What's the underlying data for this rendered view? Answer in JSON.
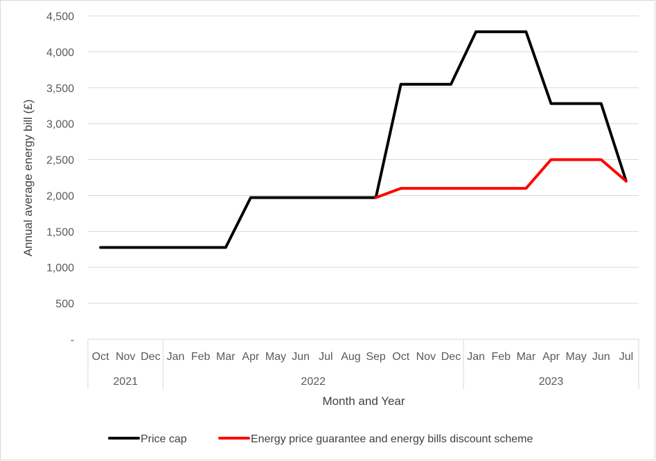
{
  "chart_data": {
    "type": "line",
    "title": "",
    "xlabel": "Month and Year",
    "ylabel": "Annual average energy bill (£)",
    "ylim": [
      0,
      4500
    ],
    "yticks": [
      0,
      500,
      1000,
      1500,
      2000,
      2500,
      3000,
      3500,
      4000,
      4500
    ],
    "ytick_labels": [
      "-",
      "500",
      "1,000",
      "1,500",
      "2,000",
      "2,500",
      "3,000",
      "3,500",
      "4,000",
      "4,500"
    ],
    "categories": [
      "Oct",
      "Nov",
      "Dec",
      "Jan",
      "Feb",
      "Mar",
      "Apr",
      "May",
      "Jun",
      "Jul",
      "Aug",
      "Sep",
      "Oct",
      "Nov",
      "Dec",
      "Jan",
      "Feb",
      "Mar",
      "Apr",
      "May",
      "Jun",
      "Jul"
    ],
    "year_groups": [
      {
        "label": "2021",
        "start": 0,
        "end": 2
      },
      {
        "label": "2022",
        "start": 3,
        "end": 14
      },
      {
        "label": "2023",
        "start": 15,
        "end": 21
      }
    ],
    "grid": true,
    "legend_position": "bottom",
    "series": [
      {
        "name": "Price cap",
        "color": "#000000",
        "values": [
          1277,
          1277,
          1277,
          1277,
          1277,
          1277,
          1971,
          1971,
          1971,
          1971,
          1971,
          1971,
          3549,
          3549,
          3549,
          4279,
          4279,
          4279,
          3280,
          3280,
          3280,
          2200
        ]
      },
      {
        "name": "Energy price guarantee and energy bills discount scheme",
        "color": "#ff0000",
        "values": [
          null,
          null,
          null,
          null,
          null,
          null,
          null,
          null,
          null,
          null,
          null,
          1971,
          2100,
          2100,
          2100,
          2100,
          2100,
          2100,
          2500,
          2500,
          2500,
          2200
        ]
      }
    ]
  }
}
